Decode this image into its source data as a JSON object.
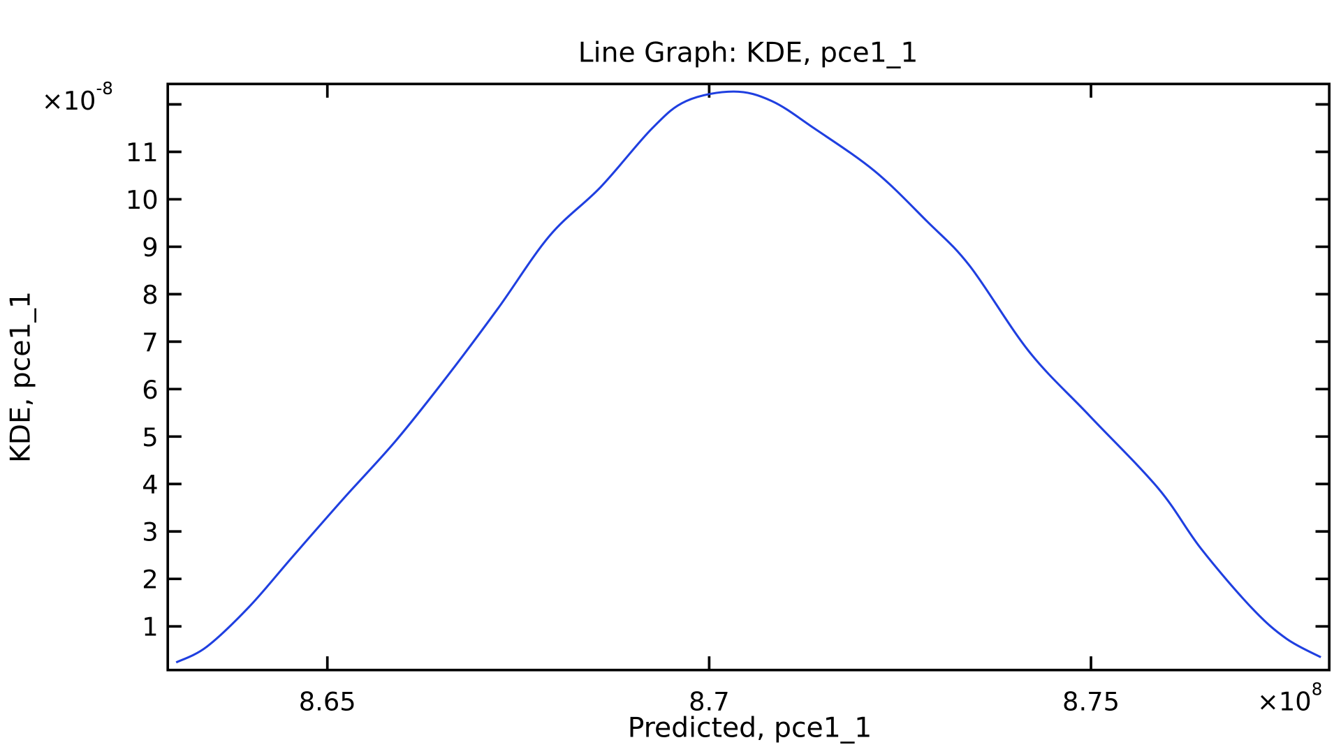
{
  "chart_data": {
    "type": "line",
    "title": "Line Graph: KDE, pce1_1",
    "xlabel": "Predicted, pce1_1",
    "ylabel": "KDE, pce1_1",
    "x_multiplier": "×10",
    "x_exponent": "8",
    "y_multiplier": "×10",
    "y_exponent": "-8",
    "xlim": [
      8.6291,
      8.7812
    ],
    "ylim": [
      0.08,
      12.43
    ],
    "xticks": [
      {
        "value": 8.65,
        "label": "8.65"
      },
      {
        "value": 8.7,
        "label": "8.7"
      },
      {
        "value": 8.75,
        "label": "8.75"
      }
    ],
    "yticks": [
      {
        "value": 1,
        "label": "1"
      },
      {
        "value": 2,
        "label": "2"
      },
      {
        "value": 3,
        "label": "3"
      },
      {
        "value": 4,
        "label": "4"
      },
      {
        "value": 5,
        "label": "5"
      },
      {
        "value": 6,
        "label": "6"
      },
      {
        "value": 7,
        "label": "7"
      },
      {
        "value": 8,
        "label": "8"
      },
      {
        "value": 9,
        "label": "9"
      },
      {
        "value": 10,
        "label": "10"
      },
      {
        "value": 11,
        "label": "11"
      },
      {
        "value": 12,
        "label": ""
      }
    ],
    "grid": false,
    "series": [
      {
        "name": "KDE, pce1_1",
        "color": "#1f3fe0",
        "x": [
          8.6302,
          8.6342,
          8.6398,
          8.6454,
          8.6521,
          8.6589,
          8.6656,
          8.6723,
          8.6791,
          8.6858,
          8.6925,
          8.697,
          8.7032,
          8.7082,
          8.7138,
          8.7217,
          8.7285,
          8.7341,
          8.7419,
          8.7498,
          8.7588,
          8.7644,
          8.7711,
          8.7756,
          8.7801
        ],
        "y": [
          0.24,
          0.57,
          1.42,
          2.46,
          3.69,
          4.9,
          6.25,
          7.69,
          9.23,
          10.26,
          11.49,
          12.07,
          12.27,
          12.07,
          11.49,
          10.59,
          9.54,
          8.6,
          6.79,
          5.44,
          3.91,
          2.64,
          1.38,
          0.74,
          0.35
        ]
      }
    ]
  }
}
